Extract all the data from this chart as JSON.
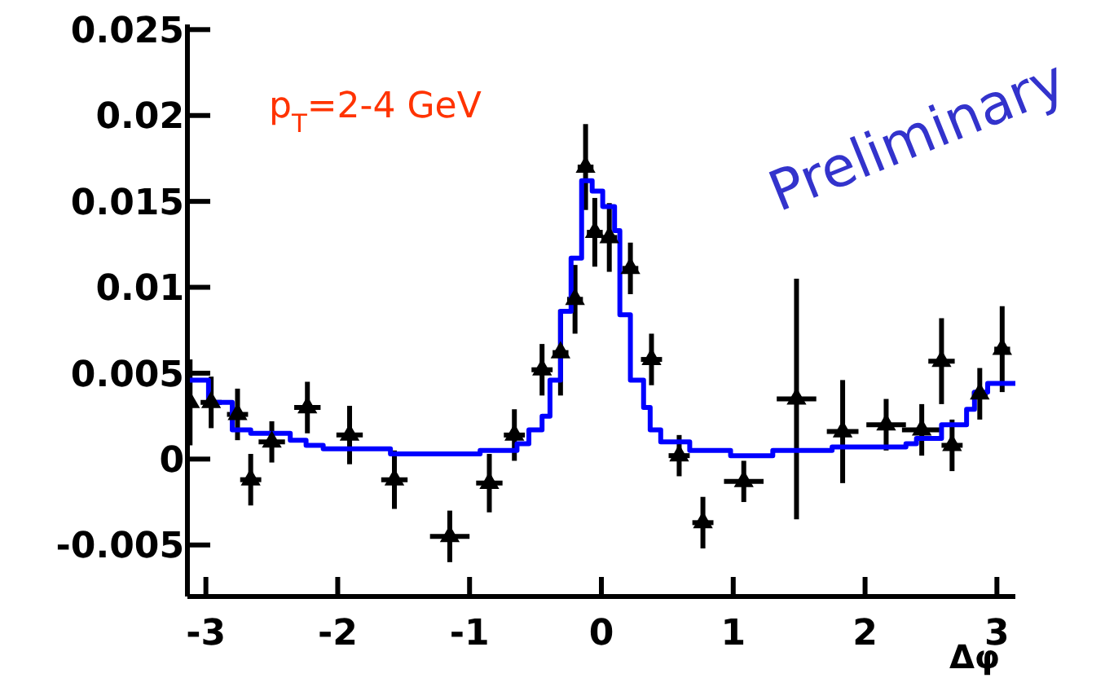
{
  "chart_data": {
    "type": "scatter",
    "xlabel": "Δφ",
    "annotations": [
      "p$_{T}$=2-4 GeV",
      "Preliminary"
    ],
    "xlim": [
      -3.14,
      3.14
    ],
    "xticks": [
      -3,
      -2,
      -1,
      0,
      1,
      2,
      3
    ],
    "ylim": [
      -0.008,
      0.0253
    ],
    "yticks": [
      -0.005,
      0,
      0.005,
      0.01,
      0.015,
      0.02,
      0.025
    ],
    "grid": false,
    "legend": false,
    "series": [
      {
        "marker": "triangle",
        "color": "#000000",
        "x": [
          -3.12,
          -2.96,
          -2.76,
          -2.66,
          -2.5,
          -2.23,
          -1.91,
          -1.57,
          -1.15,
          -0.85,
          -0.66,
          -0.45,
          -0.31,
          -0.2,
          -0.12,
          -0.05,
          0.06,
          0.22,
          0.38,
          0.59,
          0.77,
          1.08,
          1.48,
          1.83,
          2.16,
          2.43,
          2.58,
          2.66,
          2.87,
          3.04
        ],
        "values": [
          0.0033,
          0.0033,
          0.0026,
          -0.0012,
          0.001,
          0.003,
          0.0014,
          -0.0012,
          -0.0045,
          -0.0014,
          0.0014,
          0.0052,
          0.0062,
          0.0093,
          0.017,
          0.0132,
          0.0129,
          0.0111,
          0.0058,
          0.0002,
          -0.0037,
          -0.0013,
          0.0035,
          0.0016,
          0.002,
          0.0017,
          0.0057,
          0.0008,
          0.0038,
          0.0064
        ],
        "errors": [
          0.0025,
          0.0015,
          0.0015,
          0.0015,
          0.0012,
          0.0015,
          0.0017,
          0.0017,
          0.0015,
          0.0017,
          0.0015,
          0.0015,
          0.0025,
          0.002,
          0.0025,
          0.002,
          0.002,
          0.0015,
          0.0015,
          0.0012,
          0.0015,
          0.0012,
          0.007,
          0.003,
          0.0015,
          0.0015,
          0.0025,
          0.0015,
          0.0015,
          0.0025
        ],
        "xerrors": [
          0.02,
          0.08,
          0.08,
          0.08,
          0.1,
          0.1,
          0.1,
          0.1,
          0.15,
          0.1,
          0.08,
          0.08,
          0.06,
          0.06,
          0.06,
          0.06,
          0.06,
          0.06,
          0.08,
          0.08,
          0.08,
          0.15,
          0.15,
          0.12,
          0.15,
          0.15,
          0.1,
          0.08,
          0.06,
          0.06
        ]
      },
      {
        "type": "step",
        "color": "#0000ff",
        "x": [
          -3.14,
          -2.98,
          -2.8,
          -2.66,
          -2.36,
          -2.24,
          -2.11,
          -1.6,
          -0.92,
          -0.64,
          -0.55,
          -0.45,
          -0.39,
          -0.31,
          -0.23,
          -0.15,
          -0.07,
          0.01,
          0.1,
          0.14,
          0.22,
          0.32,
          0.37,
          0.45,
          0.67,
          0.98,
          1.3,
          1.75,
          2.31,
          2.39,
          2.58,
          2.77,
          2.83,
          2.93,
          3.14
        ],
        "values": [
          0.0046,
          0.0033,
          0.0017,
          0.0015,
          0.0011,
          0.0008,
          0.0006,
          0.0003,
          0.0005,
          0.0009,
          0.0017,
          0.0025,
          0.0046,
          0.0086,
          0.0117,
          0.0162,
          0.0156,
          0.0147,
          0.0133,
          0.0084,
          0.0046,
          0.003,
          0.0017,
          0.001,
          0.0005,
          0.0002,
          0.0005,
          0.0007,
          0.0009,
          0.0012,
          0.002,
          0.0029,
          0.0039,
          0.0044,
          0.0044
        ]
      }
    ]
  }
}
